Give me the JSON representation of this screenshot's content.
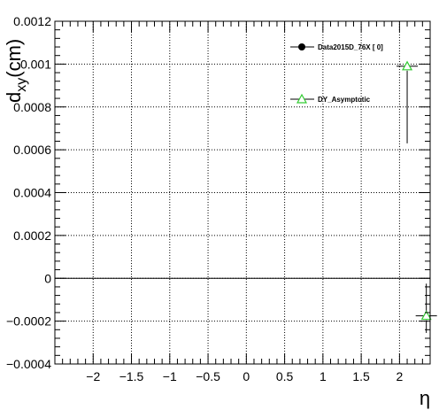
{
  "chart_data": {
    "type": "scatter",
    "xlabel": "η",
    "ylabel_main": "d",
    "ylabel_sub": "xy",
    "ylabel_unit": "(cm)",
    "xlim": [
      -2.5,
      2.4
    ],
    "ylim": [
      -0.0004,
      0.0012
    ],
    "x_ticks": [
      -2,
      -1.5,
      -1,
      -0.5,
      0,
      0.5,
      1,
      1.5,
      2
    ],
    "x_tick_labels": [
      "−2",
      "−1.5",
      "−1",
      "−0.5",
      "0",
      "0.5",
      "1",
      "1.5",
      "2"
    ],
    "y_ticks": [
      -0.0004,
      -0.0002,
      0,
      0.0002,
      0.0004,
      0.0006,
      0.0008,
      0.001,
      0.0012
    ],
    "y_tick_labels": [
      "−0.0004",
      "−0.0002",
      "0",
      "0.0002",
      "0.0004",
      "0.0006",
      "0.0008",
      "0.001",
      "0.0012"
    ],
    "grid": true,
    "zero_line": true,
    "legend_position": "top-right",
    "series": [
      {
        "name": "Data2015D_76X [        0]",
        "marker": "circle",
        "color": "#000000",
        "x": [],
        "y": [],
        "yerr_low": [],
        "yerr_high": []
      },
      {
        "name": "DY_Asymptotic",
        "marker": "triangle-open",
        "color": "#33cc33",
        "x": [
          2.1,
          2.35
        ],
        "y": [
          0.00099,
          -0.000175
        ],
        "yerr_low": [
          0.00036,
          8e-05
        ],
        "yerr_high": [
          0.0,
          0.00015
        ]
      }
    ]
  }
}
